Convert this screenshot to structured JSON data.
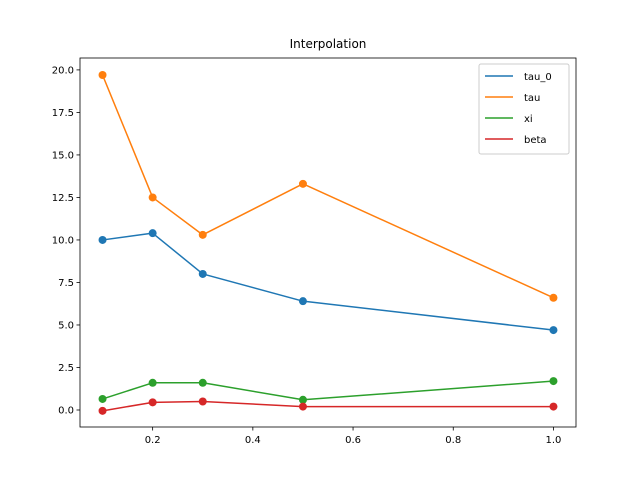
{
  "chart_data": {
    "type": "line",
    "title": "Interpolation",
    "xlabel": "",
    "ylabel": "",
    "xlim": [
      0.055,
      1.045
    ],
    "ylim": [
      -1.0,
      20.7
    ],
    "xticks": [
      0.2,
      0.4,
      0.6,
      0.8,
      1.0
    ],
    "xtick_labels": [
      "0.2",
      "0.4",
      "0.6",
      "0.8",
      "1.0"
    ],
    "yticks": [
      0.0,
      2.5,
      5.0,
      7.5,
      10.0,
      12.5,
      15.0,
      17.5,
      20.0
    ],
    "ytick_labels": [
      "0.0",
      "2.5",
      "5.0",
      "7.5",
      "10.0",
      "12.5",
      "15.0",
      "17.5",
      "20.0"
    ],
    "grid": false,
    "legend_position": "top-right",
    "x": [
      0.1,
      0.2,
      0.3,
      0.5,
      1.0
    ],
    "series": [
      {
        "name": "tau_0",
        "color": "#1f77b4",
        "marker": "circle",
        "values": [
          10.0,
          10.4,
          8.0,
          6.4,
          4.7
        ]
      },
      {
        "name": "tau",
        "color": "#ff7f0e",
        "marker": "circle",
        "values": [
          19.7,
          12.5,
          10.3,
          13.3,
          6.6
        ]
      },
      {
        "name": "xi",
        "color": "#2ca02c",
        "marker": "circle",
        "values": [
          0.65,
          1.6,
          1.6,
          0.6,
          1.7
        ]
      },
      {
        "name": "beta",
        "color": "#d62728",
        "marker": "circle",
        "values": [
          -0.05,
          0.45,
          0.5,
          0.2,
          0.2
        ]
      }
    ]
  }
}
